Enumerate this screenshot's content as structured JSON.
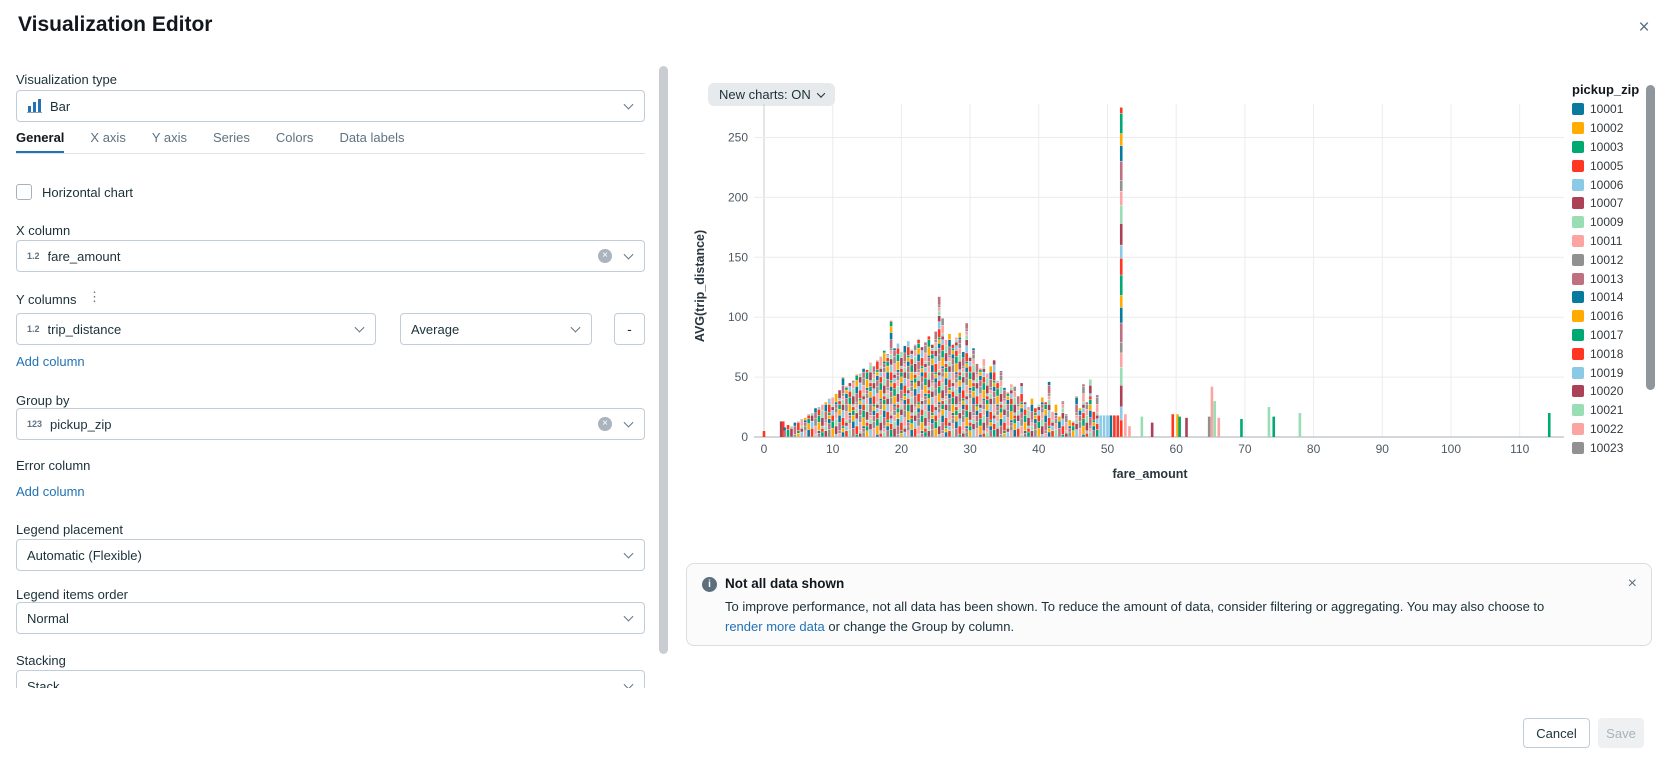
{
  "modal": {
    "title": "Visualization Editor"
  },
  "panel": {
    "viz_type": {
      "label": "Visualization type",
      "value": "Bar"
    },
    "tabs": [
      {
        "label": "General",
        "active": true
      },
      {
        "label": "X axis",
        "active": false
      },
      {
        "label": "Y axis",
        "active": false
      },
      {
        "label": "Series",
        "active": false
      },
      {
        "label": "Colors",
        "active": false
      },
      {
        "label": "Data labels",
        "active": false
      }
    ],
    "horizontal_chart_label": "Horizontal chart",
    "x_column": {
      "label": "X column",
      "value": "fare_amount",
      "type_icon": "1.2"
    },
    "y_columns": {
      "label": "Y columns",
      "value": "trip_distance",
      "type_icon": "1.2",
      "aggregation": "Average",
      "remove_label": "-"
    },
    "add_column_label": "Add column",
    "group_by": {
      "label": "Group by",
      "value": "pickup_zip",
      "type_icon": "123"
    },
    "error_column": {
      "label": "Error column",
      "add_label": "Add column"
    },
    "legend_placement": {
      "label": "Legend placement",
      "value": "Automatic (Flexible)"
    },
    "legend_items_order": {
      "label": "Legend items order",
      "value": "Normal"
    },
    "stacking": {
      "label": "Stacking",
      "value": "Stack"
    }
  },
  "chart": {
    "toolbar_label": "New charts: ON"
  },
  "chart_data": {
    "type": "bar",
    "stacked": true,
    "xlabel": "fare_amount",
    "ylabel": "AVG(trip_distance)",
    "xlim": [
      -8,
      116
    ],
    "ylim": [
      0,
      285
    ],
    "x_ticks": [
      0,
      10,
      20,
      30,
      40,
      50,
      60,
      70,
      80,
      90,
      100,
      110
    ],
    "y_ticks": [
      0,
      50,
      100,
      150,
      200,
      250
    ],
    "grid": true,
    "legend_title": "pickup_zip",
    "legend_position": "right",
    "palette": [
      "#077A9D",
      "#FFAB00",
      "#00A972",
      "#FF3621",
      "#8BCAE7",
      "#AB4057",
      "#99DDB4",
      "#FCA4A1",
      "#919191",
      "#BF7080"
    ],
    "legend": [
      {
        "label": "10001",
        "color": "#077A9D"
      },
      {
        "label": "10002",
        "color": "#FFAB00"
      },
      {
        "label": "10003",
        "color": "#00A972"
      },
      {
        "label": "10005",
        "color": "#FF3621"
      },
      {
        "label": "10006",
        "color": "#8BCAE7"
      },
      {
        "label": "10007",
        "color": "#AB4057"
      },
      {
        "label": "10009",
        "color": "#99DDB4"
      },
      {
        "label": "10011",
        "color": "#FCA4A1"
      },
      {
        "label": "10012",
        "color": "#919191"
      },
      {
        "label": "10013",
        "color": "#BF7080"
      },
      {
        "label": "10014",
        "color": "#077A9D"
      },
      {
        "label": "10016",
        "color": "#FFAB00"
      },
      {
        "label": "10017",
        "color": "#00A972"
      },
      {
        "label": "10018",
        "color": "#FF3621"
      },
      {
        "label": "10019",
        "color": "#8BCAE7"
      },
      {
        "label": "10020",
        "color": "#AB4057"
      },
      {
        "label": "10021",
        "color": "#99DDB4"
      },
      {
        "label": "10022",
        "color": "#FCA4A1"
      },
      {
        "label": "10023",
        "color": "#919191"
      }
    ],
    "bars_note": "Each bar = [fare_amount, total AVG(trip_distance) of stacked segments, optional palette color index; bars without index are multi-colored stacks]",
    "bars": [
      [
        0,
        5,
        3
      ],
      [
        2.5,
        13,
        5
      ],
      [
        2.8,
        13,
        3
      ],
      [
        3,
        8
      ],
      [
        3.5,
        10
      ],
      [
        4,
        9
      ],
      [
        4.5,
        12
      ],
      [
        5,
        13
      ],
      [
        5.5,
        15
      ],
      [
        6,
        16
      ],
      [
        6.5,
        19
      ],
      [
        7,
        20
      ],
      [
        7.5,
        24
      ],
      [
        8,
        25
      ],
      [
        8.5,
        27
      ],
      [
        9,
        29
      ],
      [
        9.5,
        32
      ],
      [
        10,
        33
      ],
      [
        10.5,
        36
      ],
      [
        11,
        39
      ],
      [
        11.5,
        50
      ],
      [
        12,
        42
      ],
      [
        12.5,
        45
      ],
      [
        13,
        47
      ],
      [
        13.5,
        52
      ],
      [
        14,
        53
      ],
      [
        14.5,
        57
      ],
      [
        15,
        56
      ],
      [
        15.5,
        62
      ],
      [
        16,
        59
      ],
      [
        16.5,
        64
      ],
      [
        17,
        67
      ],
      [
        17.5,
        72
      ],
      [
        18,
        69
      ],
      [
        18.5,
        97
      ],
      [
        19,
        74
      ],
      [
        19.5,
        78
      ],
      [
        20,
        71
      ],
      [
        20.5,
        76
      ],
      [
        21,
        80
      ],
      [
        21.5,
        73
      ],
      [
        22,
        77
      ],
      [
        22.5,
        82
      ],
      [
        23,
        75
      ],
      [
        23.5,
        79
      ],
      [
        24,
        84
      ],
      [
        24.5,
        77
      ],
      [
        25,
        88
      ],
      [
        25.5,
        117
      ],
      [
        26,
        99
      ],
      [
        26.5,
        81
      ],
      [
        27,
        86
      ],
      [
        27.5,
        77
      ],
      [
        28,
        83
      ],
      [
        28.5,
        87
      ],
      [
        29,
        71
      ],
      [
        29.5,
        95
      ],
      [
        30,
        67
      ],
      [
        30.5,
        74
      ],
      [
        31,
        61
      ],
      [
        31.5,
        57
      ],
      [
        32,
        65
      ],
      [
        32.5,
        53
      ],
      [
        33,
        59
      ],
      [
        33.5,
        64
      ],
      [
        34,
        47
      ],
      [
        34.5,
        55
      ],
      [
        35,
        41
      ],
      [
        35.5,
        37
      ],
      [
        36,
        44
      ],
      [
        36.5,
        42
      ],
      [
        37,
        34
      ],
      [
        37.5,
        45
      ],
      [
        38,
        29
      ],
      [
        38.5,
        25
      ],
      [
        39,
        32
      ],
      [
        39.5,
        24
      ],
      [
        40,
        27
      ],
      [
        40.5,
        33
      ],
      [
        41,
        29
      ],
      [
        41.5,
        46
      ],
      [
        42,
        21
      ],
      [
        42.5,
        27
      ],
      [
        43,
        17
      ],
      [
        43.5,
        30
      ],
      [
        44,
        19
      ],
      [
        44.5,
        14
      ],
      [
        45,
        13
      ],
      [
        45.5,
        34
      ],
      [
        46,
        24
      ],
      [
        46.5,
        44
      ],
      [
        47,
        29
      ],
      [
        47.5,
        48
      ],
      [
        48,
        21
      ],
      [
        48.5,
        35
      ],
      [
        49,
        18,
        4
      ],
      [
        49.5,
        18,
        4
      ],
      [
        50,
        18,
        4
      ],
      [
        50.5,
        18,
        0
      ],
      [
        51,
        18,
        3
      ],
      [
        51.5,
        18,
        3
      ],
      [
        52,
        275
      ],
      [
        52.6,
        19,
        7
      ],
      [
        53.2,
        9,
        7
      ],
      [
        55,
        17,
        6
      ],
      [
        56.5,
        12,
        5
      ],
      [
        59.5,
        19,
        3
      ],
      [
        60.2,
        19,
        1
      ],
      [
        60.5,
        17,
        2
      ],
      [
        61.5,
        16,
        5
      ],
      [
        64.8,
        17,
        8
      ],
      [
        65.2,
        42,
        7
      ],
      [
        65.6,
        30,
        6
      ],
      [
        66.2,
        16,
        7
      ],
      [
        69.5,
        15,
        2
      ],
      [
        73.5,
        25,
        6
      ],
      [
        74.2,
        17,
        2
      ],
      [
        78,
        20,
        6
      ],
      [
        114.3,
        20,
        2
      ]
    ]
  },
  "banner": {
    "title": "Not all data shown",
    "body_line1": "To improve performance, not all data has been shown. To reduce the amount of data, consider filtering or aggregating. You may also choose to",
    "link_text": "render more data",
    "body_line2": " or change the Group by column."
  },
  "footer": {
    "cancel": "Cancel",
    "save": "Save"
  }
}
